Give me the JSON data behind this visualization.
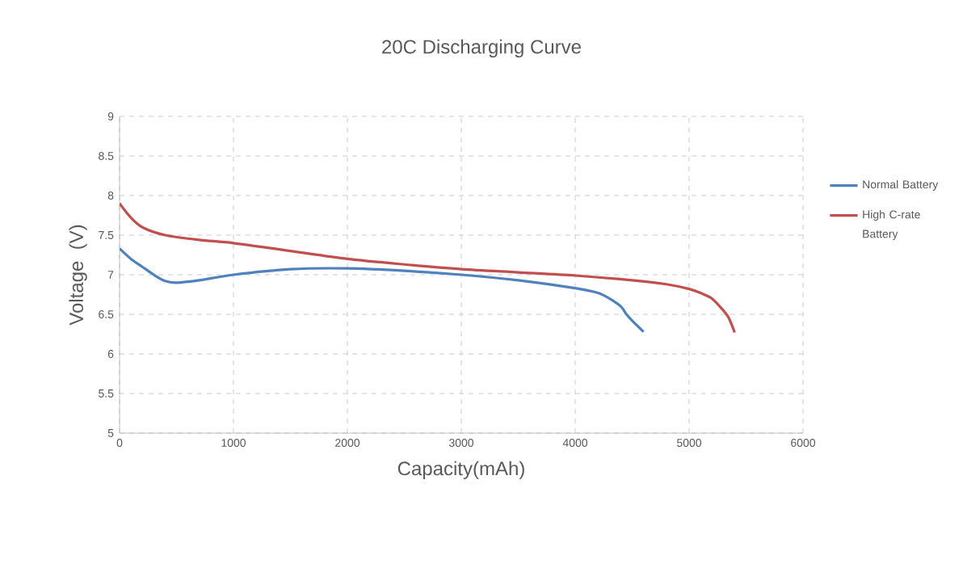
{
  "chart_data": {
    "type": "line",
    "title": "20C Discharging Curve",
    "xlabel": "Capacity(mAh)",
    "ylabel": "Voltage  (V)",
    "xlim": [
      0,
      6000
    ],
    "xticks": [
      0,
      1000,
      2000,
      3000,
      4000,
      5000,
      6000
    ],
    "ylim": [
      5,
      9
    ],
    "yticks": [
      5,
      5.5,
      6,
      6.5,
      7,
      7.5,
      8,
      8.5,
      9
    ],
    "grid": true,
    "legend": "right",
    "marker": "none",
    "line_style": "solid",
    "series": [
      {
        "name": "Normal Battery",
        "color": "#4f81bd",
        "x": [
          0,
          100,
          200,
          300,
          400,
          500,
          700,
          1000,
          1500,
          2000,
          2500,
          3000,
          3500,
          4000,
          4200,
          4300,
          4400,
          4450,
          4500,
          4600
        ],
        "values": [
          7.33,
          7.2,
          7.1,
          7.0,
          6.92,
          6.9,
          6.93,
          7.0,
          7.07,
          7.08,
          7.05,
          7.0,
          6.93,
          6.83,
          6.77,
          6.7,
          6.6,
          6.5,
          6.42,
          6.28
        ]
      },
      {
        "name": "High C-rate Battery",
        "color": "#c0504d",
        "x": [
          0,
          100,
          200,
          400,
          700,
          1000,
          1500,
          2000,
          2500,
          3000,
          3500,
          4000,
          4500,
          4800,
          5000,
          5100,
          5200,
          5300,
          5350,
          5400
        ],
        "values": [
          7.9,
          7.72,
          7.6,
          7.5,
          7.44,
          7.4,
          7.3,
          7.2,
          7.13,
          7.07,
          7.03,
          6.99,
          6.93,
          6.88,
          6.82,
          6.77,
          6.7,
          6.55,
          6.45,
          6.27
        ]
      }
    ]
  }
}
